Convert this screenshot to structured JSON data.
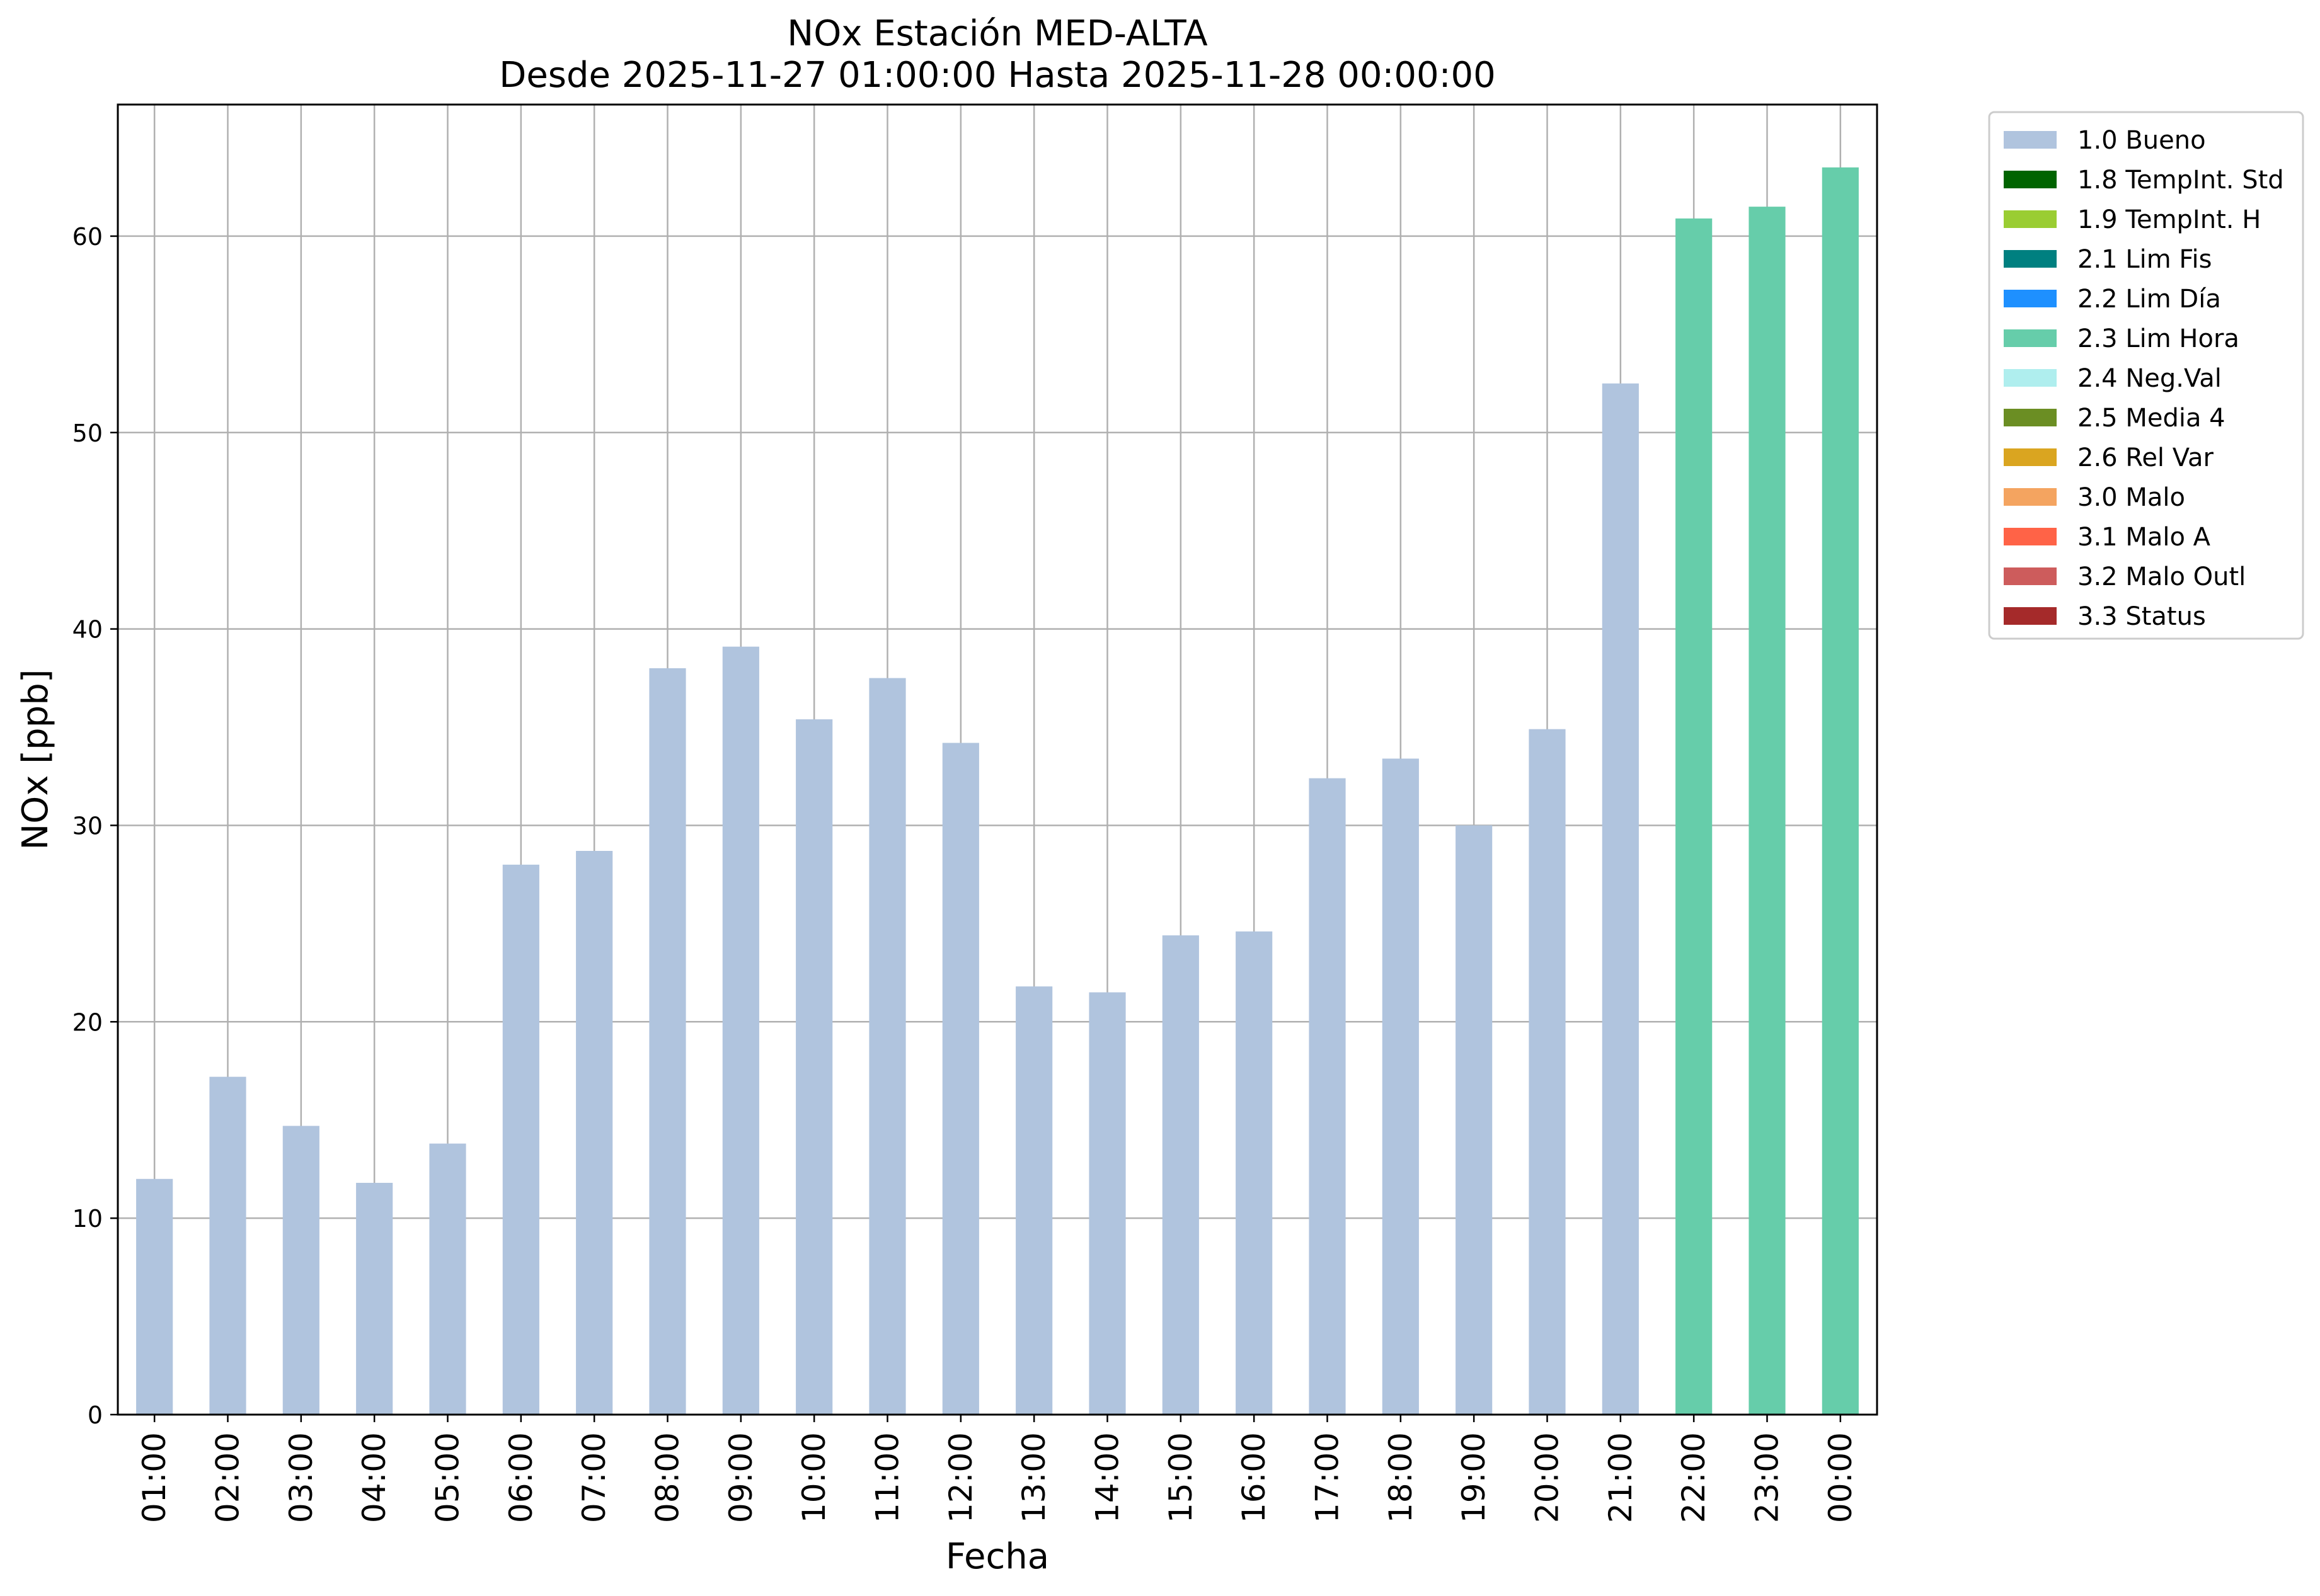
{
  "chart_data": {
    "type": "bar",
    "title": "NOx Estación MED-ALTA",
    "subtitle": "Desde 2025-11-27 01:00:00 Hasta 2025-11-28 00:00:00",
    "xlabel": "Fecha",
    "ylabel": "NOx [ppb]",
    "ylim": [
      0,
      66.7
    ],
    "yticks": [
      0,
      10,
      20,
      30,
      40,
      50,
      60
    ],
    "grid": true,
    "legend_position": "outside-right-top",
    "categories": [
      "01:00",
      "02:00",
      "03:00",
      "04:00",
      "05:00",
      "06:00",
      "07:00",
      "08:00",
      "09:00",
      "10:00",
      "11:00",
      "12:00",
      "13:00",
      "14:00",
      "15:00",
      "16:00",
      "17:00",
      "18:00",
      "19:00",
      "20:00",
      "21:00",
      "22:00",
      "23:00",
      "00:00"
    ],
    "values": [
      12.0,
      17.2,
      14.7,
      11.8,
      13.8,
      28.0,
      28.7,
      38.0,
      39.1,
      35.4,
      37.5,
      34.2,
      21.8,
      21.5,
      24.4,
      24.6,
      32.4,
      33.4,
      30.0,
      34.9,
      52.5,
      60.9,
      61.5,
      63.5
    ],
    "value_flags": [
      "1.0 Bueno",
      "1.0 Bueno",
      "1.0 Bueno",
      "1.0 Bueno",
      "1.0 Bueno",
      "1.0 Bueno",
      "1.0 Bueno",
      "1.0 Bueno",
      "1.0 Bueno",
      "1.0 Bueno",
      "1.0 Bueno",
      "1.0 Bueno",
      "1.0 Bueno",
      "1.0 Bueno",
      "1.0 Bueno",
      "1.0 Bueno",
      "1.0 Bueno",
      "1.0 Bueno",
      "1.0 Bueno",
      "1.0 Bueno",
      "1.0 Bueno",
      "2.3 Lim Hora",
      "2.3 Lim Hora",
      "2.3 Lim Hora"
    ],
    "legend": [
      {
        "label": "1.0 Bueno",
        "color": "#b0c4de"
      },
      {
        "label": "1.8 TempInt. Std",
        "color": "#006400"
      },
      {
        "label": "1.9 TempInt. H",
        "color": "#9acd32"
      },
      {
        "label": "2.1 Lim Fis",
        "color": "#008080"
      },
      {
        "label": "2.2 Lim Día",
        "color": "#1e90ff"
      },
      {
        "label": "2.3 Lim Hora",
        "color": "#66cdaa"
      },
      {
        "label": "2.4 Neg.Val",
        "color": "#afeeee"
      },
      {
        "label": "2.5 Media 4",
        "color": "#6b8e23"
      },
      {
        "label": "2.6 Rel Var",
        "color": "#daa520"
      },
      {
        "label": "3.0 Malo",
        "color": "#f4a460"
      },
      {
        "label": "3.1 Malo A",
        "color": "#ff6347"
      },
      {
        "label": "3.2 Malo Outl",
        "color": "#cd5c5c"
      },
      {
        "label": "3.3 Status",
        "color": "#a52a2a"
      }
    ]
  }
}
